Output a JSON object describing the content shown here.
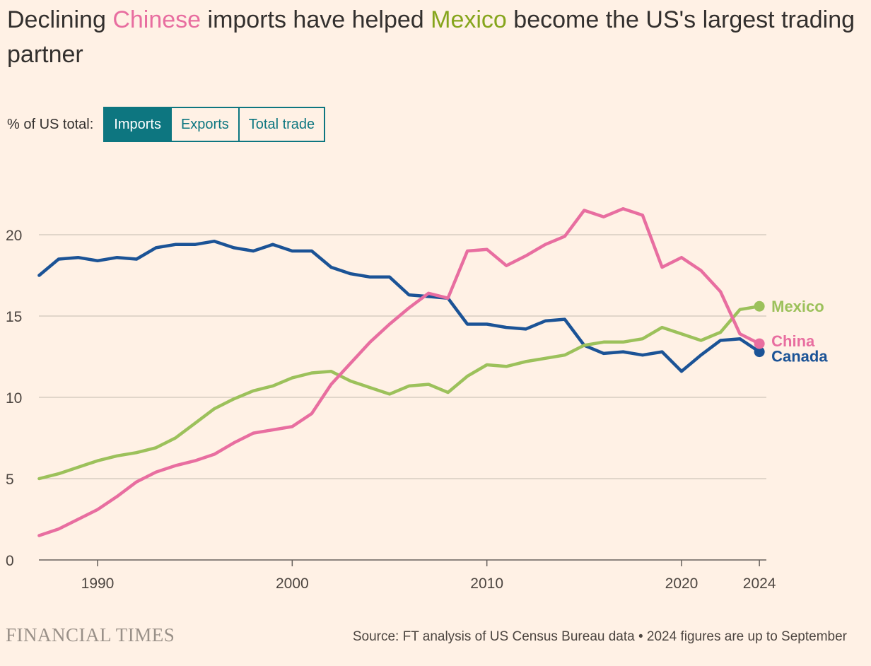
{
  "title": {
    "part1": "Declining ",
    "hl1": "Chinese",
    "part2": " imports have helped ",
    "hl2": "Mexico",
    "part3": " become the US's largest trading partner"
  },
  "controls": {
    "label": "% of US total:",
    "buttons": [
      {
        "label": "Imports",
        "active": true
      },
      {
        "label": "Exports",
        "active": false
      },
      {
        "label": "Total trade",
        "active": false
      }
    ]
  },
  "colors": {
    "china": "#e86ea0",
    "mexico": "#9cc15b",
    "canada": "#1b5396",
    "grid": "#d7cdc2",
    "axis": "#66605c",
    "accent": "#0d7680"
  },
  "chart_data": {
    "type": "line",
    "title": "",
    "xlabel": "",
    "ylabel": "% of US total",
    "xlim": [
      1987,
      2024
    ],
    "ylim": [
      0,
      20
    ],
    "x_ticks": [
      1990,
      2000,
      2010,
      2020,
      2024
    ],
    "y_ticks": [
      0,
      5,
      10,
      15,
      20
    ],
    "grid": true,
    "x": [
      1987,
      1988,
      1989,
      1990,
      1991,
      1992,
      1993,
      1994,
      1995,
      1996,
      1997,
      1998,
      1999,
      2000,
      2001,
      2002,
      2003,
      2004,
      2005,
      2006,
      2007,
      2008,
      2009,
      2010,
      2011,
      2012,
      2013,
      2014,
      2015,
      2016,
      2017,
      2018,
      2019,
      2020,
      2021,
      2022,
      2023,
      2024
    ],
    "series": [
      {
        "name": "Canada",
        "key": "canada",
        "values": [
          17.5,
          18.5,
          18.6,
          18.4,
          18.6,
          18.5,
          19.2,
          19.4,
          19.4,
          19.6,
          19.2,
          19.0,
          19.4,
          19.0,
          19.0,
          18.0,
          17.6,
          17.4,
          17.4,
          16.3,
          16.2,
          16.1,
          14.5,
          14.5,
          14.3,
          14.2,
          14.7,
          14.8,
          13.2,
          12.7,
          12.8,
          12.6,
          12.8,
          11.6,
          12.6,
          13.5,
          13.6,
          12.8
        ]
      },
      {
        "name": "China",
        "key": "china",
        "values": [
          1.5,
          1.9,
          2.5,
          3.1,
          3.9,
          4.8,
          5.4,
          5.8,
          6.1,
          6.5,
          7.2,
          7.8,
          8.0,
          8.2,
          9.0,
          10.8,
          12.1,
          13.4,
          14.5,
          15.5,
          16.4,
          16.1,
          19.0,
          19.1,
          18.1,
          18.7,
          19.4,
          19.9,
          21.5,
          21.1,
          21.6,
          21.2,
          18.0,
          18.6,
          17.8,
          16.5,
          13.9,
          13.3
        ]
      },
      {
        "name": "Mexico",
        "key": "mexico",
        "values": [
          5.0,
          5.3,
          5.7,
          6.1,
          6.4,
          6.6,
          6.9,
          7.5,
          8.4,
          9.3,
          9.9,
          10.4,
          10.7,
          11.2,
          11.5,
          11.6,
          11.0,
          10.6,
          10.2,
          10.7,
          10.8,
          10.3,
          11.3,
          12.0,
          11.9,
          12.2,
          12.4,
          12.6,
          13.2,
          13.4,
          13.4,
          13.6,
          14.3,
          13.9,
          13.5,
          14.0,
          15.4,
          15.6
        ]
      }
    ]
  },
  "footer": {
    "logo": "FINANCIAL TIMES",
    "source": "Source: FT analysis of US Census Bureau data • 2024 figures are up to September"
  }
}
